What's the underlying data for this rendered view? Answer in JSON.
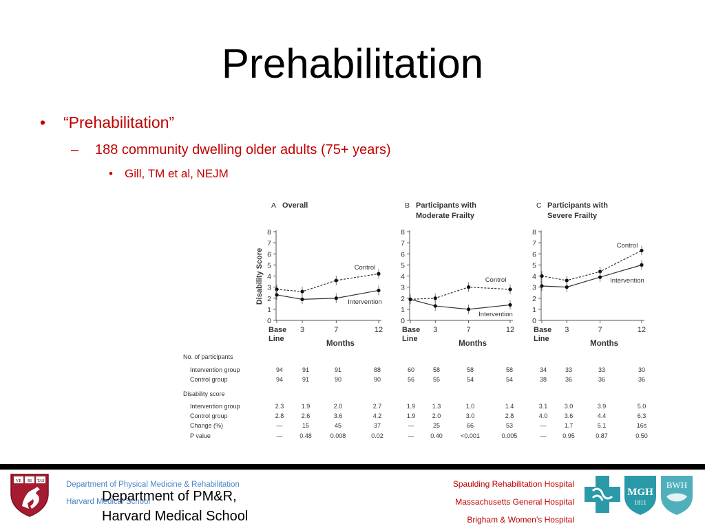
{
  "slide": {
    "title": "Prehabilitation",
    "bullet1": "“Prehabilitation”",
    "bullet2": "188 community dwelling older adults (75+ years)",
    "bullet3": "Gill, TM et al, NEJM",
    "bullet1_marker": "•",
    "bullet2_marker": "–",
    "bullet3_marker": "•"
  },
  "footer": {
    "dept_line1": "Department of Physical Medicine & Rehabilitation",
    "dept_line2": "Harvard Medical School",
    "dept_big_line1": "Department of PM&R,",
    "dept_big_line2": "Harvard Medical School",
    "hospital1": "Spaulding Rehabilitation Hospital",
    "hospital2": "Massachusetts General Hospital",
    "hospital3": "Brigham & Women’s Hospital",
    "mgh_logo_text": "MGH",
    "mgh_logo_year": "1811",
    "bwh_logo_text": "BWH",
    "shield_text": [
      "VE",
      "RI",
      "TAS"
    ],
    "accent_color": "#c00000",
    "link_color": "#4a86c8"
  },
  "chart_data": {
    "type": "line",
    "ylabel": "Disability Score",
    "xlabel": "Months",
    "x_ticks": [
      "Base\nLine",
      "3",
      "7",
      "12"
    ],
    "y_ticks": [
      "0",
      "1",
      "2",
      "3",
      "4",
      "5",
      "6",
      "7",
      "8"
    ],
    "ylim": [
      0,
      8
    ],
    "panels": [
      {
        "letter": "A",
        "title": [
          "Overall"
        ],
        "series": [
          {
            "name": "Control",
            "style": "dashed",
            "values": [
              2.8,
              2.6,
              3.6,
              4.2
            ]
          },
          {
            "name": "Intervention",
            "style": "solid",
            "values": [
              2.3,
              1.9,
              2.0,
              2.7
            ]
          }
        ]
      },
      {
        "letter": "B",
        "title": [
          "Participants with",
          "Moderate Frailty"
        ],
        "series": [
          {
            "name": "Control",
            "style": "dashed",
            "values": [
              1.9,
              2.0,
              3.0,
              2.8
            ]
          },
          {
            "name": "Intervention",
            "style": "solid",
            "values": [
              1.9,
              1.3,
              1.0,
              1.4
            ]
          }
        ]
      },
      {
        "letter": "C",
        "title": [
          "Participants with",
          "Severe Frailty"
        ],
        "series": [
          {
            "name": "Control",
            "style": "dashed",
            "values": [
              4.0,
              3.6,
              4.4,
              6.3
            ]
          },
          {
            "name": "Intervention",
            "style": "solid",
            "values": [
              3.1,
              3.0,
              3.9,
              5.0
            ]
          }
        ]
      }
    ],
    "table": {
      "sections": [
        {
          "heading": "No. of participants",
          "rows": [
            {
              "label": "Intervention group",
              "values": [
                "94",
                "91",
                "91",
                "88",
                "60",
                "58",
                "58",
                "58",
                "34",
                "33",
                "33",
                "30"
              ]
            },
            {
              "label": "Control group",
              "values": [
                "94",
                "91",
                "90",
                "90",
                "56",
                "55",
                "54",
                "54",
                "38",
                "36",
                "36",
                "36"
              ]
            }
          ]
        },
        {
          "heading": "Disability score",
          "rows": [
            {
              "label": "Intervention group",
              "values": [
                "2.3",
                "1.9",
                "2.0",
                "2.7",
                "1.9",
                "1.3",
                "1.0",
                "1.4",
                "3.1",
                "3.0",
                "3.9",
                "5.0"
              ]
            },
            {
              "label": "Control group",
              "values": [
                "2.8",
                "2.6",
                "3.6",
                "4.2",
                "1.9",
                "2.0",
                "3.0",
                "2.8",
                "4.0",
                "3.6",
                "4.4",
                "6.3"
              ]
            },
            {
              "label": "Change (%)",
              "values": [
                "—",
                "15",
                "45",
                "37",
                "—",
                "25",
                "66",
                "53",
                "—",
                "1.7",
                "5.1",
                "16s"
              ]
            },
            {
              "label": "P value",
              "values": [
                "—",
                "0.48",
                "0.008",
                "0.02",
                "—",
                "0.40",
                "<0.001",
                "0.005",
                "—",
                "0.95",
                "0.87",
                "0.50"
              ]
            }
          ]
        }
      ]
    }
  }
}
